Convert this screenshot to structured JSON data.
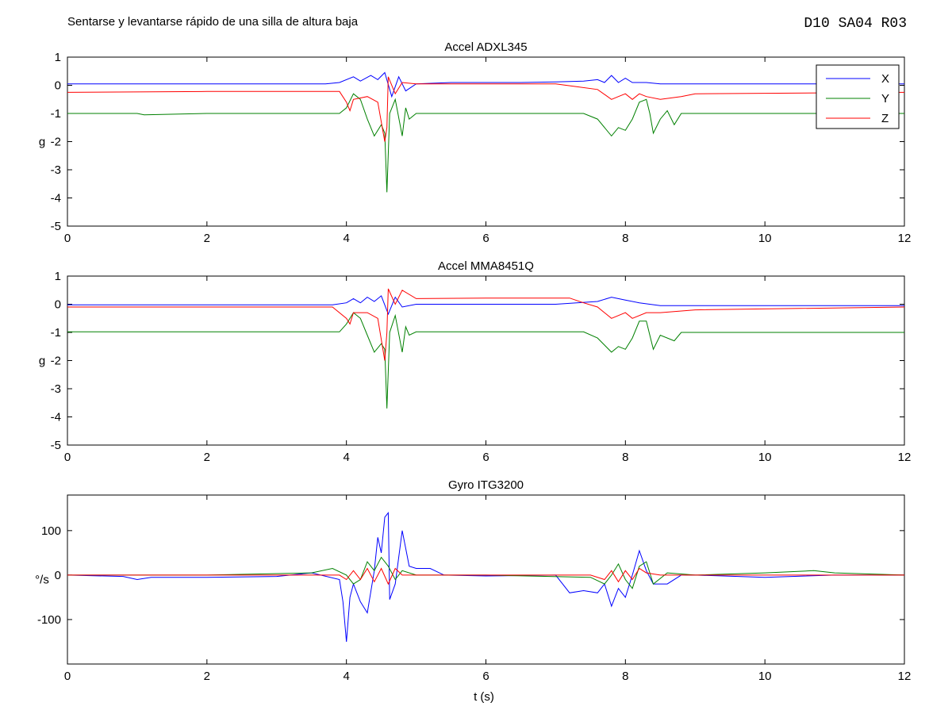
{
  "figure": {
    "title": "Sentarse y levantarse rápido de una silla de altura baja",
    "code": "D10 SA04 R03",
    "xlabel": "t (s)"
  },
  "legend": {
    "placement": "top-right",
    "items": [
      {
        "label": "X",
        "color": "#0000ff"
      },
      {
        "label": "Y",
        "color": "#008000"
      },
      {
        "label": "Z",
        "color": "#ff0000"
      }
    ]
  },
  "chart_data": [
    {
      "type": "line",
      "title": "Accel ADXL345",
      "ylabel": "g",
      "xlim": [
        0,
        12
      ],
      "ylim": [
        -5,
        1
      ],
      "xticks": [
        0,
        2,
        4,
        6,
        8,
        10,
        12
      ],
      "yticks": [
        -5,
        -4,
        -3,
        -2,
        -1,
        0,
        1
      ],
      "series": [
        {
          "name": "X",
          "color": "#0000ff",
          "points": [
            [
              0,
              0.05
            ],
            [
              3.7,
              0.05
            ],
            [
              3.9,
              0.1
            ],
            [
              4.1,
              0.3
            ],
            [
              4.2,
              0.15
            ],
            [
              4.35,
              0.35
            ],
            [
              4.45,
              0.2
            ],
            [
              4.55,
              0.45
            ],
            [
              4.65,
              -0.4
            ],
            [
              4.75,
              0.3
            ],
            [
              4.85,
              -0.2
            ],
            [
              5.0,
              0.05
            ],
            [
              5.5,
              0.1
            ],
            [
              6.5,
              0.1
            ],
            [
              7.0,
              0.12
            ],
            [
              7.4,
              0.15
            ],
            [
              7.6,
              0.2
            ],
            [
              7.7,
              0.1
            ],
            [
              7.8,
              0.35
            ],
            [
              7.9,
              0.1
            ],
            [
              8.0,
              0.25
            ],
            [
              8.1,
              0.1
            ],
            [
              8.3,
              0.1
            ],
            [
              8.5,
              0.05
            ],
            [
              9.0,
              0.05
            ],
            [
              12,
              0.05
            ]
          ]
        },
        {
          "name": "Y",
          "color": "#008000",
          "points": [
            [
              0,
              -1
            ],
            [
              1.0,
              -1
            ],
            [
              1.1,
              -1.05
            ],
            [
              2.0,
              -1
            ],
            [
              3.9,
              -1
            ],
            [
              4.0,
              -0.8
            ],
            [
              4.1,
              -0.3
            ],
            [
              4.2,
              -0.5
            ],
            [
              4.3,
              -1.2
            ],
            [
              4.4,
              -1.8
            ],
            [
              4.5,
              -1.4
            ],
            [
              4.55,
              -1.7
            ],
            [
              4.58,
              -3.8
            ],
            [
              4.62,
              -1.0
            ],
            [
              4.7,
              -0.5
            ],
            [
              4.8,
              -1.8
            ],
            [
              4.85,
              -0.8
            ],
            [
              4.9,
              -1.2
            ],
            [
              5.0,
              -1.0
            ],
            [
              6,
              -1
            ],
            [
              7,
              -1
            ],
            [
              7.4,
              -1.0
            ],
            [
              7.6,
              -1.2
            ],
            [
              7.8,
              -1.8
            ],
            [
              7.9,
              -1.5
            ],
            [
              8.0,
              -1.6
            ],
            [
              8.1,
              -1.2
            ],
            [
              8.2,
              -0.6
            ],
            [
              8.3,
              -0.5
            ],
            [
              8.35,
              -1.0
            ],
            [
              8.4,
              -1.7
            ],
            [
              8.5,
              -1.2
            ],
            [
              8.6,
              -0.9
            ],
            [
              8.7,
              -1.4
            ],
            [
              8.8,
              -1.0
            ],
            [
              9,
              -1
            ],
            [
              12,
              -1
            ]
          ]
        },
        {
          "name": "Z",
          "color": "#ff0000",
          "points": [
            [
              0,
              -0.25
            ],
            [
              2,
              -0.22
            ],
            [
              3.9,
              -0.22
            ],
            [
              4.0,
              -0.6
            ],
            [
              4.05,
              -0.9
            ],
            [
              4.1,
              -0.5
            ],
            [
              4.3,
              -0.4
            ],
            [
              4.45,
              -0.6
            ],
            [
              4.55,
              -2.0
            ],
            [
              4.58,
              -1.5
            ],
            [
              4.6,
              0.3
            ],
            [
              4.7,
              -0.3
            ],
            [
              4.8,
              0.1
            ],
            [
              5.0,
              0.05
            ],
            [
              6,
              0.05
            ],
            [
              7.0,
              0.05
            ],
            [
              7.3,
              -0.05
            ],
            [
              7.6,
              -0.15
            ],
            [
              7.8,
              -0.5
            ],
            [
              7.9,
              -0.4
            ],
            [
              8.0,
              -0.3
            ],
            [
              8.1,
              -0.5
            ],
            [
              8.2,
              -0.3
            ],
            [
              8.3,
              -0.4
            ],
            [
              8.5,
              -0.5
            ],
            [
              8.8,
              -0.4
            ],
            [
              9,
              -0.3
            ],
            [
              12,
              -0.25
            ]
          ]
        }
      ]
    },
    {
      "type": "line",
      "title": "Accel MMA8451Q",
      "ylabel": "g",
      "xlim": [
        0,
        12
      ],
      "ylim": [
        -5,
        1
      ],
      "xticks": [
        0,
        2,
        4,
        6,
        8,
        10,
        12
      ],
      "yticks": [
        -5,
        -4,
        -3,
        -2,
        -1,
        0,
        1
      ],
      "series": [
        {
          "name": "X",
          "color": "#0000ff",
          "points": [
            [
              0,
              -0.02
            ],
            [
              3.8,
              -0.02
            ],
            [
              4.0,
              0.05
            ],
            [
              4.1,
              0.2
            ],
            [
              4.2,
              0.05
            ],
            [
              4.3,
              0.25
            ],
            [
              4.4,
              0.1
            ],
            [
              4.5,
              0.3
            ],
            [
              4.6,
              -0.35
            ],
            [
              4.7,
              0.25
            ],
            [
              4.8,
              -0.1
            ],
            [
              5.0,
              0.0
            ],
            [
              7.0,
              0.0
            ],
            [
              7.6,
              0.1
            ],
            [
              7.8,
              0.25
            ],
            [
              8.0,
              0.15
            ],
            [
              8.2,
              0.05
            ],
            [
              8.5,
              -0.05
            ],
            [
              12,
              -0.05
            ]
          ]
        },
        {
          "name": "Y",
          "color": "#008000",
          "points": [
            [
              0,
              -0.98
            ],
            [
              2,
              -0.98
            ],
            [
              3.9,
              -0.98
            ],
            [
              4.0,
              -0.7
            ],
            [
              4.1,
              -0.3
            ],
            [
              4.2,
              -0.5
            ],
            [
              4.3,
              -1.1
            ],
            [
              4.4,
              -1.7
            ],
            [
              4.5,
              -1.4
            ],
            [
              4.55,
              -1.6
            ],
            [
              4.58,
              -3.7
            ],
            [
              4.62,
              -1.0
            ],
            [
              4.7,
              -0.4
            ],
            [
              4.8,
              -1.7
            ],
            [
              4.85,
              -0.8
            ],
            [
              4.9,
              -1.1
            ],
            [
              5.0,
              -0.98
            ],
            [
              7.4,
              -0.98
            ],
            [
              7.6,
              -1.2
            ],
            [
              7.8,
              -1.7
            ],
            [
              7.9,
              -1.5
            ],
            [
              8.0,
              -1.6
            ],
            [
              8.1,
              -1.2
            ],
            [
              8.2,
              -0.6
            ],
            [
              8.3,
              -0.6
            ],
            [
              8.4,
              -1.6
            ],
            [
              8.5,
              -1.1
            ],
            [
              8.7,
              -1.3
            ],
            [
              8.8,
              -1.0
            ],
            [
              9,
              -1.0
            ],
            [
              12,
              -1.0
            ]
          ]
        },
        {
          "name": "Z",
          "color": "#ff0000",
          "points": [
            [
              0,
              -0.1
            ],
            [
              3.8,
              -0.1
            ],
            [
              4.0,
              -0.5
            ],
            [
              4.05,
              -0.7
            ],
            [
              4.1,
              -0.3
            ],
            [
              4.3,
              -0.3
            ],
            [
              4.45,
              -0.5
            ],
            [
              4.55,
              -2.0
            ],
            [
              4.58,
              -1.0
            ],
            [
              4.6,
              0.55
            ],
            [
              4.7,
              0.0
            ],
            [
              4.8,
              0.5
            ],
            [
              5.0,
              0.2
            ],
            [
              6,
              0.22
            ],
            [
              7.2,
              0.22
            ],
            [
              7.4,
              0.05
            ],
            [
              7.6,
              -0.1
            ],
            [
              7.8,
              -0.5
            ],
            [
              8.0,
              -0.3
            ],
            [
              8.1,
              -0.5
            ],
            [
              8.3,
              -0.3
            ],
            [
              8.5,
              -0.3
            ],
            [
              9,
              -0.2
            ],
            [
              12,
              -0.1
            ]
          ]
        }
      ]
    },
    {
      "type": "line",
      "title": "Gyro ITG3200",
      "ylabel": "°/s",
      "xlim": [
        0,
        12
      ],
      "ylim": [
        -200,
        180
      ],
      "xticks": [
        0,
        2,
        4,
        6,
        8,
        10,
        12
      ],
      "yticks": [
        -100,
        0,
        100
      ],
      "series": [
        {
          "name": "X",
          "color": "#0000ff",
          "points": [
            [
              0,
              0
            ],
            [
              0.8,
              -3
            ],
            [
              1.0,
              -10
            ],
            [
              1.2,
              -5
            ],
            [
              2.0,
              -5
            ],
            [
              3.0,
              -3
            ],
            [
              3.5,
              5
            ],
            [
              3.9,
              -10
            ],
            [
              3.95,
              -60
            ],
            [
              4.0,
              -150
            ],
            [
              4.05,
              -50
            ],
            [
              4.1,
              -20
            ],
            [
              4.2,
              -60
            ],
            [
              4.3,
              -85
            ],
            [
              4.4,
              10
            ],
            [
              4.45,
              85
            ],
            [
              4.5,
              50
            ],
            [
              4.55,
              130
            ],
            [
              4.6,
              140
            ],
            [
              4.62,
              -55
            ],
            [
              4.7,
              -20
            ],
            [
              4.8,
              100
            ],
            [
              4.9,
              20
            ],
            [
              5.0,
              15
            ],
            [
              5.2,
              15
            ],
            [
              5.4,
              0
            ],
            [
              6.0,
              -2
            ],
            [
              7.0,
              0
            ],
            [
              7.2,
              -40
            ],
            [
              7.4,
              -35
            ],
            [
              7.6,
              -40
            ],
            [
              7.7,
              -20
            ],
            [
              7.8,
              -70
            ],
            [
              7.9,
              -30
            ],
            [
              8.0,
              -50
            ],
            [
              8.1,
              0
            ],
            [
              8.2,
              55
            ],
            [
              8.3,
              10
            ],
            [
              8.4,
              -20
            ],
            [
              8.6,
              -20
            ],
            [
              8.8,
              0
            ],
            [
              9,
              0
            ],
            [
              10,
              -5
            ],
            [
              11,
              0
            ],
            [
              12,
              0
            ]
          ]
        },
        {
          "name": "Y",
          "color": "#008000",
          "points": [
            [
              0,
              0
            ],
            [
              2,
              0
            ],
            [
              3.5,
              5
            ],
            [
              3.8,
              15
            ],
            [
              4.0,
              0
            ],
            [
              4.1,
              -20
            ],
            [
              4.2,
              -10
            ],
            [
              4.3,
              30
            ],
            [
              4.4,
              10
            ],
            [
              4.5,
              40
            ],
            [
              4.6,
              20
            ],
            [
              4.7,
              -10
            ],
            [
              4.8,
              10
            ],
            [
              5.0,
              0
            ],
            [
              6,
              0
            ],
            [
              7.5,
              -5
            ],
            [
              7.7,
              -20
            ],
            [
              7.8,
              0
            ],
            [
              7.9,
              25
            ],
            [
              8.0,
              -10
            ],
            [
              8.1,
              -30
            ],
            [
              8.2,
              20
            ],
            [
              8.3,
              30
            ],
            [
              8.4,
              -20
            ],
            [
              8.6,
              5
            ],
            [
              9,
              0
            ],
            [
              10,
              5
            ],
            [
              10.7,
              10
            ],
            [
              11,
              5
            ],
            [
              12,
              0
            ]
          ]
        },
        {
          "name": "Z",
          "color": "#ff0000",
          "points": [
            [
              0,
              0
            ],
            [
              3.9,
              0
            ],
            [
              4.0,
              -10
            ],
            [
              4.1,
              10
            ],
            [
              4.2,
              -10
            ],
            [
              4.3,
              15
            ],
            [
              4.4,
              -15
            ],
            [
              4.5,
              15
            ],
            [
              4.6,
              -20
            ],
            [
              4.7,
              15
            ],
            [
              4.8,
              0
            ],
            [
              5.0,
              0
            ],
            [
              7.5,
              0
            ],
            [
              7.7,
              -10
            ],
            [
              7.8,
              10
            ],
            [
              7.9,
              -15
            ],
            [
              8.0,
              10
            ],
            [
              8.1,
              -10
            ],
            [
              8.2,
              15
            ],
            [
              8.3,
              5
            ],
            [
              8.5,
              0
            ],
            [
              12,
              0
            ]
          ]
        }
      ]
    }
  ]
}
